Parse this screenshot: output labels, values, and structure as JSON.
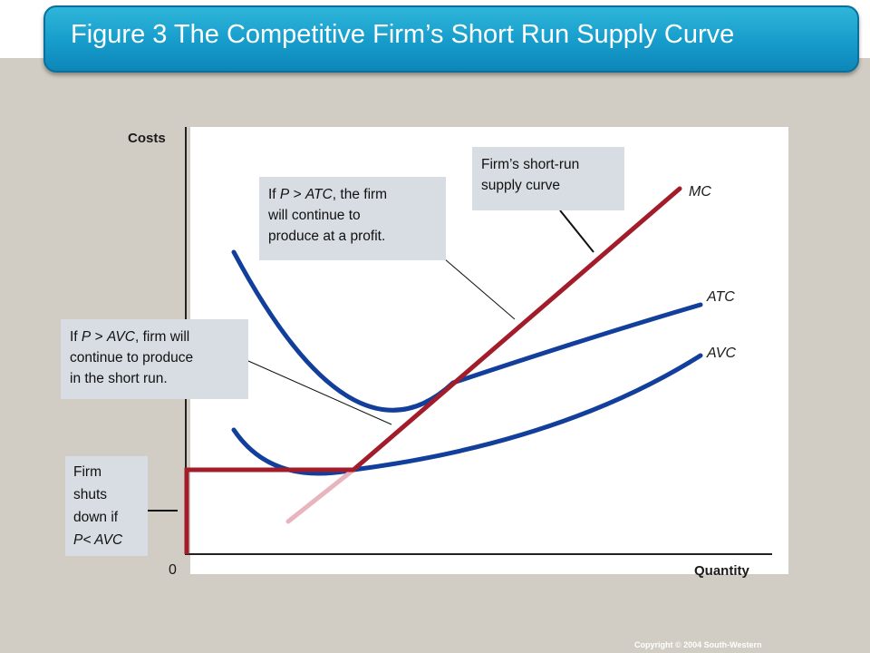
{
  "title": "Figure 3 The Competitive Firm’s Short Run Supply Curve",
  "axes": {
    "y_label": "Costs",
    "x_label": "Quantity",
    "origin": "0"
  },
  "curves": {
    "mc": "MC",
    "atc": "ATC",
    "avc": "AVC"
  },
  "callouts": {
    "supply": {
      "line1": "Firm’s short-run",
      "line2": "supply curve"
    },
    "atc": {
      "line1_pre": "If ",
      "line1_p": "P",
      "line1_gt": " > ",
      "line1_var": "ATC",
      "line1_post": ", the firm",
      "line2": "will continue to",
      "line3": "produce at a profit."
    },
    "avc": {
      "line1_pre": "If ",
      "line1_p": "P",
      "line1_gt": " > ",
      "line1_var": "AVC",
      "line1_post": ", firm will",
      "line2": "continue to produce",
      "line3": "in the short run."
    },
    "shutdown": {
      "line1": "Firm",
      "line2": "shuts",
      "line3": "down if",
      "line4": "P< AVC"
    }
  },
  "colors": {
    "mc_supply": "#a31c2a",
    "mc_below": "#e8b4be",
    "cost_curves": "#123f9b",
    "banner": "#169ccb"
  },
  "copyright": "Copyright © 2004  South-Western"
}
